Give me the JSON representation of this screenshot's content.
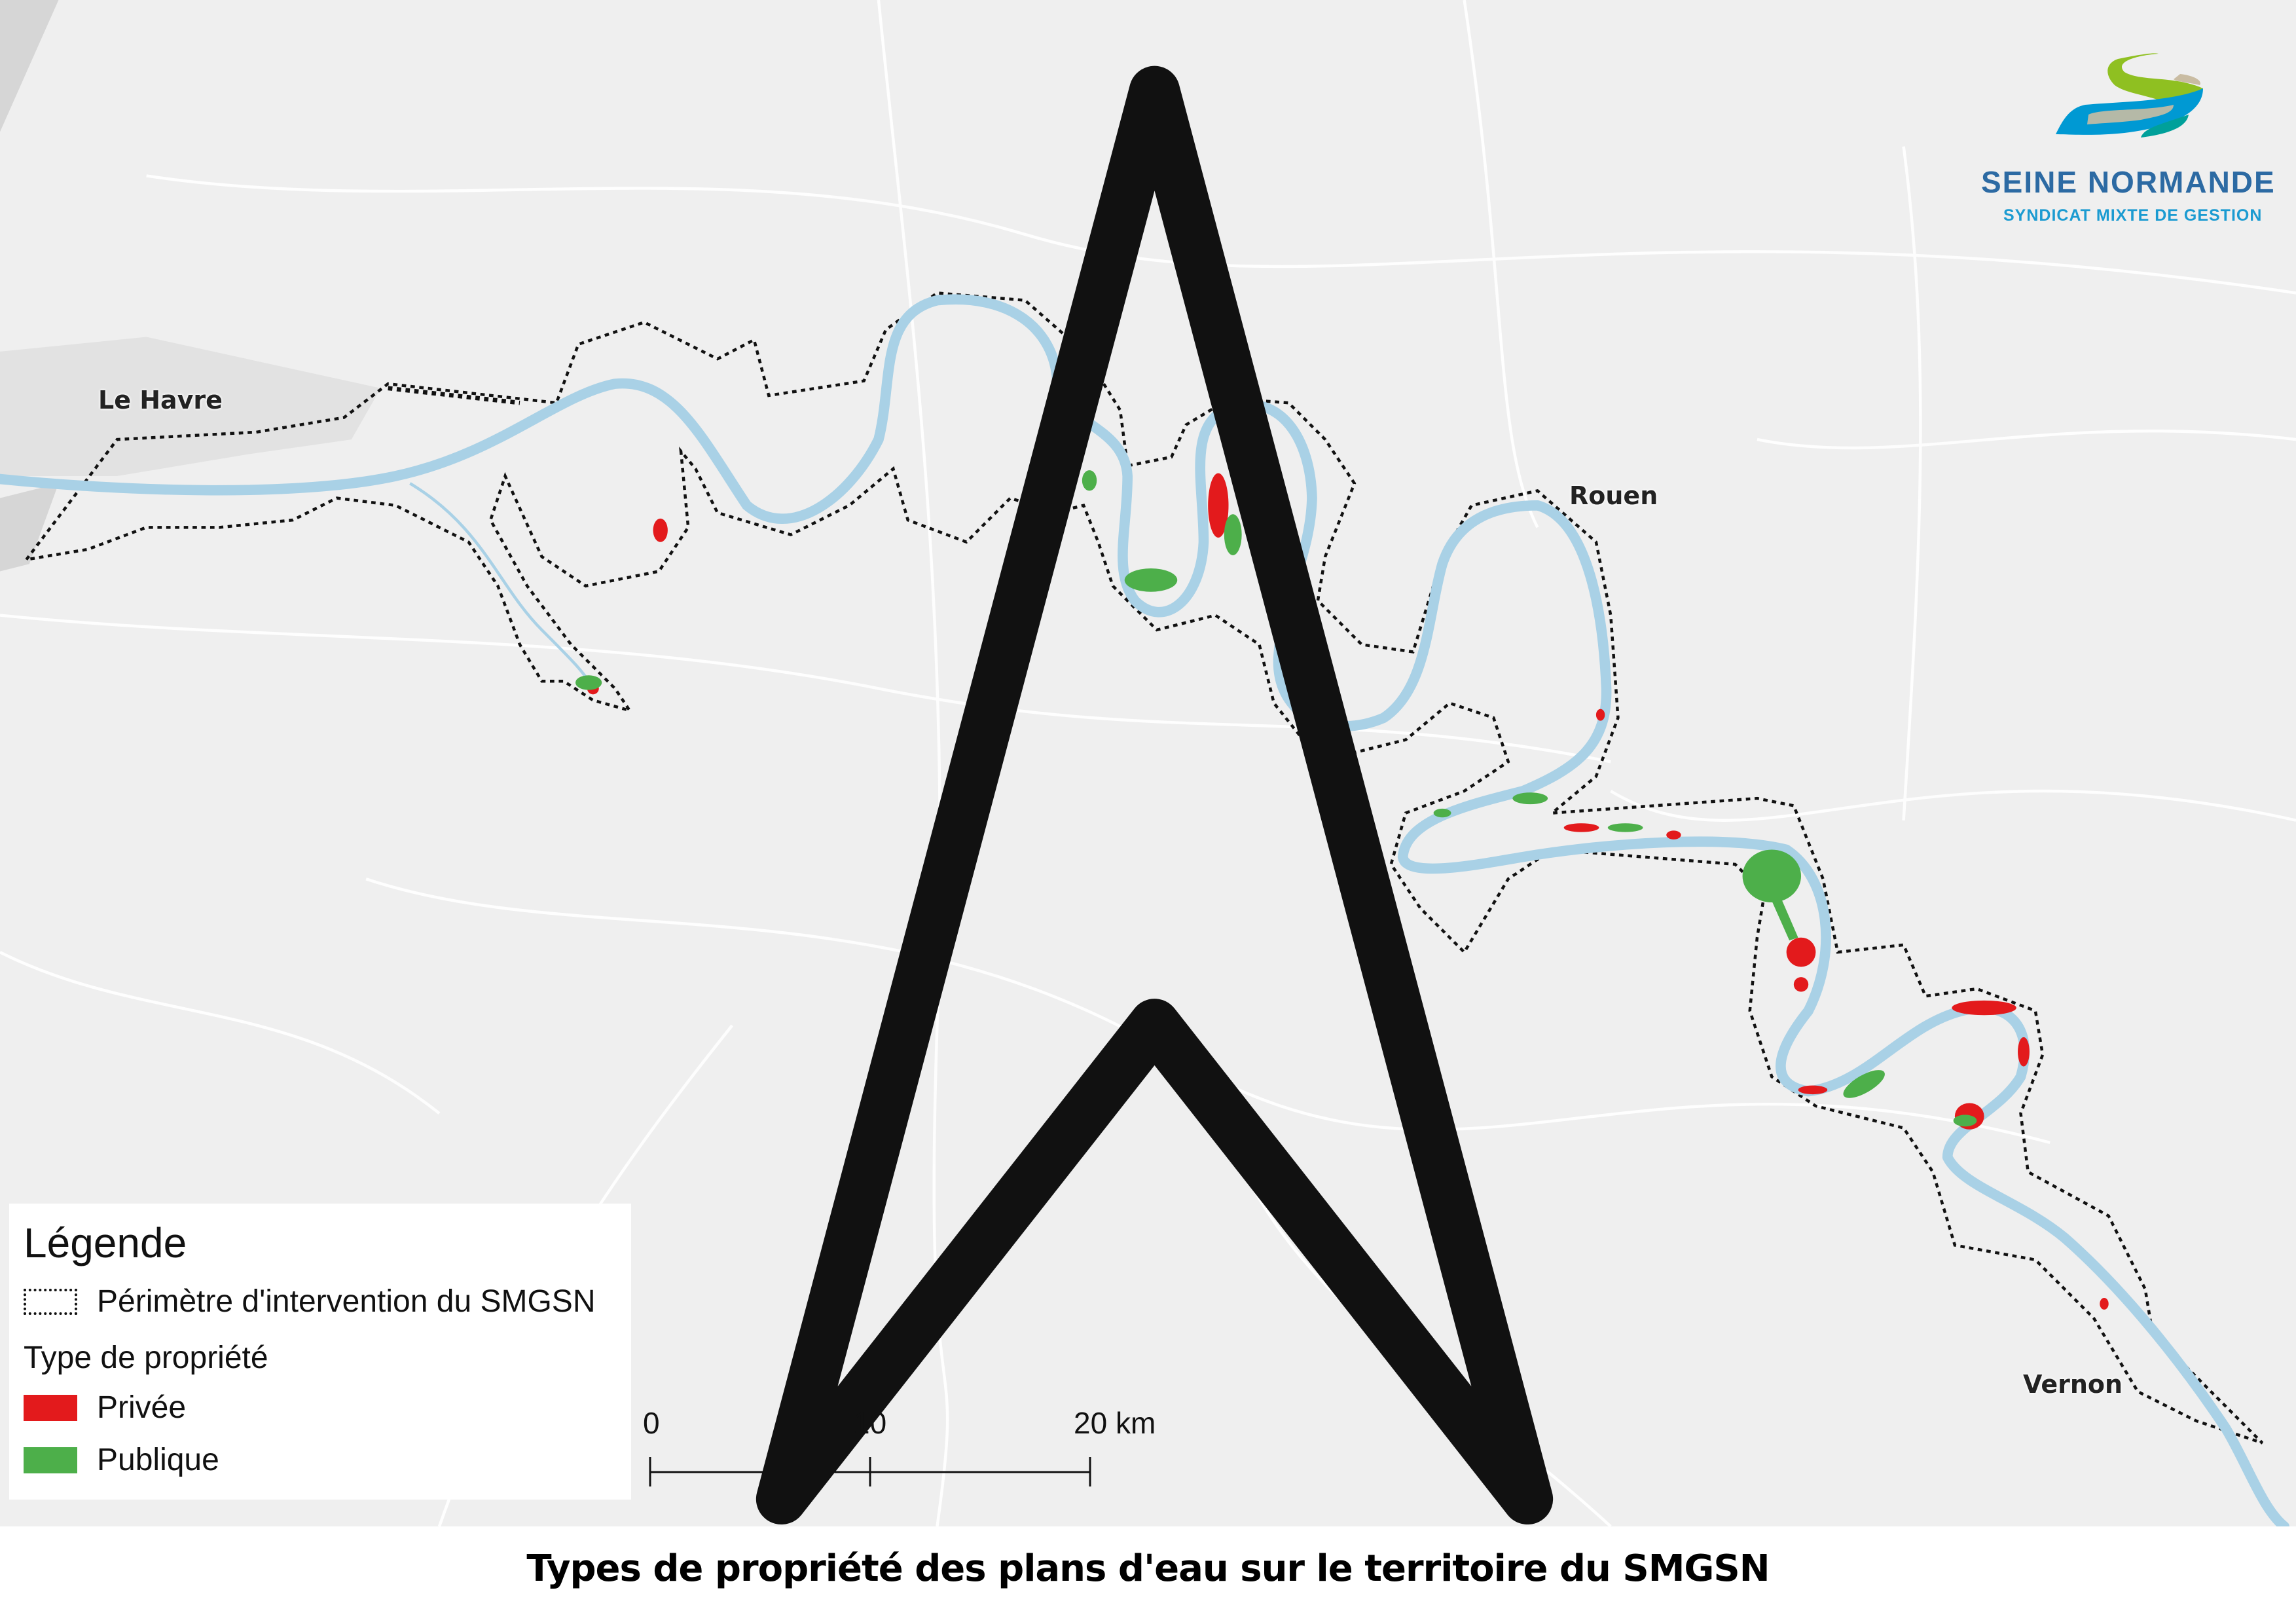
{
  "map": {
    "cities": [
      {
        "name": "Le Havre"
      },
      {
        "name": "Rouen"
      },
      {
        "name": "Vernon"
      }
    ],
    "colors": {
      "background": "#efefef",
      "river": "#a9d1e6",
      "perimeter": "#111111",
      "privee": "#e31a1c",
      "publique": "#4daf4a"
    },
    "north_arrow_icon": "north-arrow-icon"
  },
  "logo": {
    "name": "SEINE NORMANDE",
    "subtitle": "SYNDICAT MIXTE DE GESTION"
  },
  "legend": {
    "title": "Légende",
    "perimeter_label": "Périmètre d'intervention du SMGSN",
    "group_title": "Type de propriété",
    "items": [
      {
        "label": "Privée",
        "color": "#e31a1c"
      },
      {
        "label": "Publique",
        "color": "#4daf4a"
      }
    ]
  },
  "scalebar": {
    "labels": [
      "0",
      "10",
      "20 km"
    ]
  },
  "title": "Types de propriété des plans d'eau sur le territoire du SMGSN"
}
